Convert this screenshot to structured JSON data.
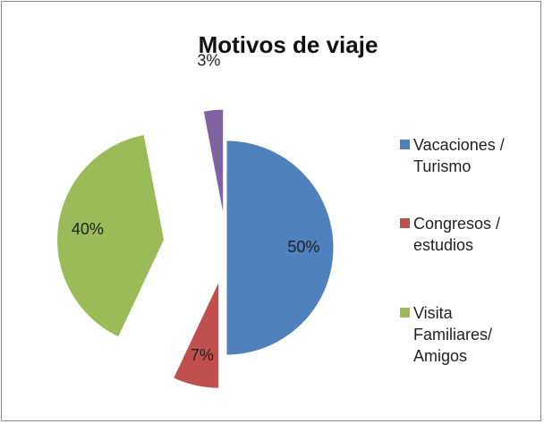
{
  "chart_data": {
    "type": "pie",
    "title": "Motivos de viaje",
    "categories": [
      "Vacaciones / Turismo",
      "Congresos / estudios",
      "Visita Familiares/ Amigos",
      null
    ],
    "values": [
      50,
      7,
      40,
      3
    ],
    "value_labels": [
      "50%",
      "7%",
      "40%",
      "3%"
    ],
    "colors": [
      "#4f81bd",
      "#c0504d",
      "#9bbb59",
      "#8064a2"
    ],
    "legend": "right"
  }
}
